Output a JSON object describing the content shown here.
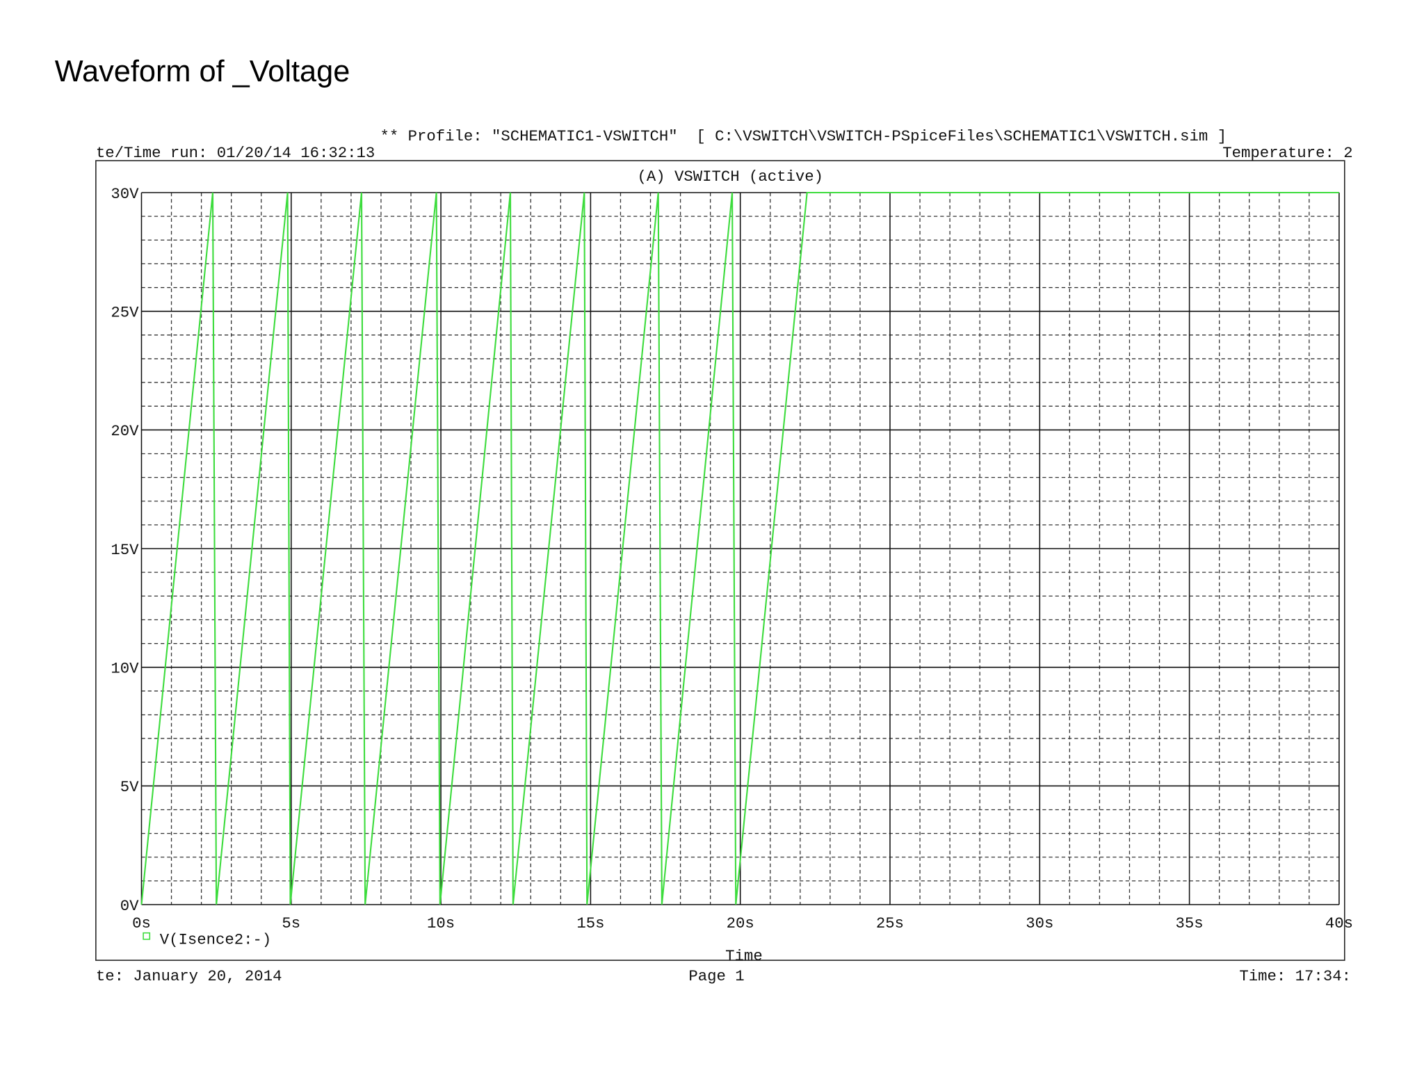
{
  "heading": "Waveform of _Voltage",
  "chart_data": {
    "type": "line",
    "profile_line": "** Profile: \"SCHEMATIC1-VSWITCH\"  [ C:\\VSWITCH\\VSWITCH-PSpiceFiles\\SCHEMATIC1\\VSWITCH.sim ]",
    "run_line": "te/Time run: 01/20/14 16:32:13",
    "temperature": "Temperature: 2",
    "title": "(A) VSWITCH (active)",
    "x_label": "Time",
    "x": [
      0,
      2.38,
      2.5,
      4.88,
      4.97,
      7.35,
      7.47,
      9.85,
      9.97,
      12.32,
      12.41,
      14.79,
      14.88,
      17.26,
      17.38,
      19.73,
      19.85,
      22.23,
      40
    ],
    "series": [
      {
        "name": "V(Isence2:-)",
        "color": "#3ddc3d",
        "values": [
          0,
          30,
          0,
          30,
          0,
          30,
          0,
          30,
          0,
          30,
          0,
          30,
          0,
          30,
          0,
          30,
          0,
          30,
          30
        ]
      }
    ],
    "xlim": [
      0,
      40
    ],
    "ylim": [
      0,
      30
    ],
    "xticks": [
      {
        "value": 0,
        "label": "0s"
      },
      {
        "value": 5,
        "label": "5s"
      },
      {
        "value": 10,
        "label": "10s"
      },
      {
        "value": 15,
        "label": "15s"
      },
      {
        "value": 20,
        "label": "20s"
      },
      {
        "value": 25,
        "label": "25s"
      },
      {
        "value": 30,
        "label": "30s"
      },
      {
        "value": 35,
        "label": "35s"
      },
      {
        "value": 40,
        "label": "40s"
      }
    ],
    "yticks": [
      {
        "value": 0,
        "label": "0V"
      },
      {
        "value": 5,
        "label": "5V"
      },
      {
        "value": 10,
        "label": "10V"
      },
      {
        "value": 15,
        "label": "15V"
      },
      {
        "value": 20,
        "label": "20V"
      },
      {
        "value": 25,
        "label": "25V"
      },
      {
        "value": 30,
        "label": "30V"
      }
    ],
    "grid": true,
    "footer_date": "te: January 20, 2014",
    "footer_page": "Page 1",
    "footer_time": "Time: 17:34:"
  }
}
